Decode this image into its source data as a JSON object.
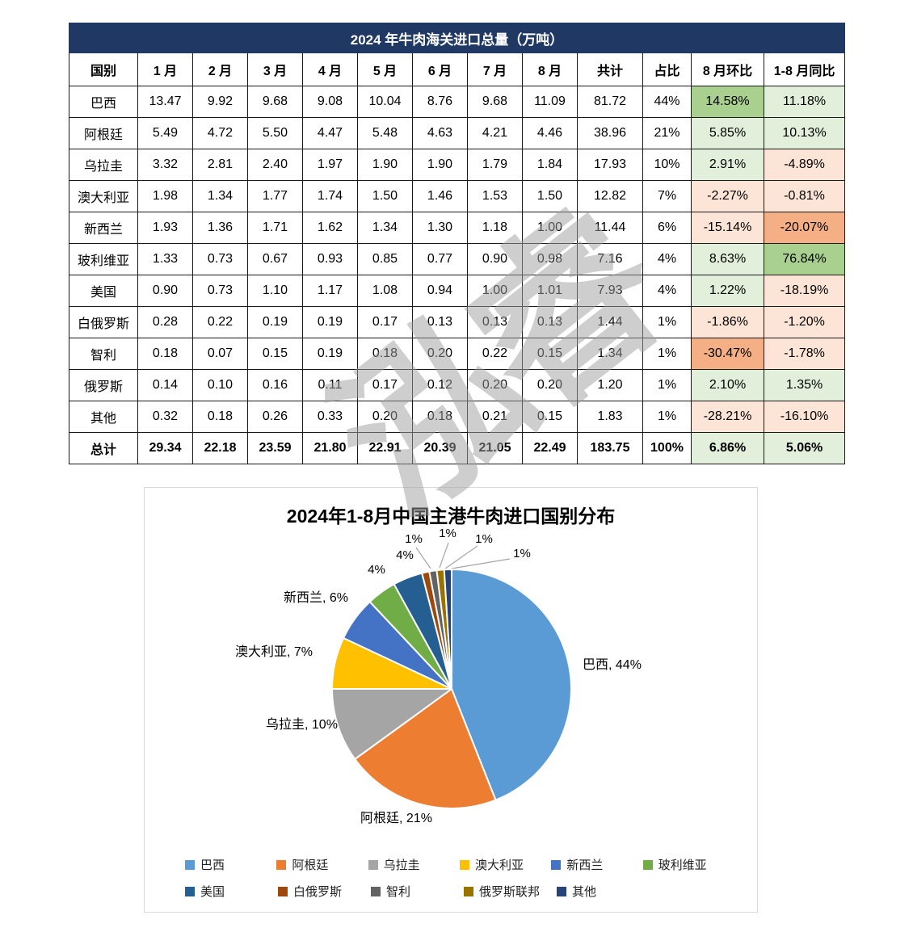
{
  "table": {
    "title": "2024 年牛肉海关进口总量（万吨）",
    "columns": [
      "国别",
      "1 月",
      "2 月",
      "3 月",
      "4 月",
      "5 月",
      "6 月",
      "7 月",
      "8 月",
      "共计",
      "占比",
      "8 月环比",
      "1-8 月同比"
    ],
    "rows": [
      {
        "country": "巴西",
        "months": [
          "13.47",
          "9.92",
          "9.68",
          "9.08",
          "10.04",
          "8.76",
          "9.68",
          "11.09"
        ],
        "total": "81.72",
        "share": "44%",
        "mom": {
          "text": "14.58%",
          "tone": "green_strong"
        },
        "yoy": {
          "text": "11.18%",
          "tone": "green_light"
        },
        "bold": false
      },
      {
        "country": "阿根廷",
        "months": [
          "5.49",
          "4.72",
          "5.50",
          "4.47",
          "5.48",
          "4.63",
          "4.21",
          "4.46"
        ],
        "total": "38.96",
        "share": "21%",
        "mom": {
          "text": "5.85%",
          "tone": "green_light"
        },
        "yoy": {
          "text": "10.13%",
          "tone": "green_light"
        },
        "bold": false
      },
      {
        "country": "乌拉圭",
        "months": [
          "3.32",
          "2.81",
          "2.40",
          "1.97",
          "1.90",
          "1.90",
          "1.79",
          "1.84"
        ],
        "total": "17.93",
        "share": "10%",
        "mom": {
          "text": "2.91%",
          "tone": "green_light"
        },
        "yoy": {
          "text": "-4.89%",
          "tone": "orange_light"
        },
        "bold": false
      },
      {
        "country": "澳大利亚",
        "months": [
          "1.98",
          "1.34",
          "1.77",
          "1.74",
          "1.50",
          "1.46",
          "1.53",
          "1.50"
        ],
        "total": "12.82",
        "share": "7%",
        "mom": {
          "text": "-2.27%",
          "tone": "orange_light"
        },
        "yoy": {
          "text": "-0.81%",
          "tone": "orange_light"
        },
        "bold": false
      },
      {
        "country": "新西兰",
        "months": [
          "1.93",
          "1.36",
          "1.71",
          "1.62",
          "1.34",
          "1.30",
          "1.18",
          "1.00"
        ],
        "total": "11.44",
        "share": "6%",
        "mom": {
          "text": "-15.14%",
          "tone": "orange_light"
        },
        "yoy": {
          "text": "-20.07%",
          "tone": "orange_strong"
        },
        "bold": false
      },
      {
        "country": "玻利维亚",
        "months": [
          "1.33",
          "0.73",
          "0.67",
          "0.93",
          "0.85",
          "0.77",
          "0.90",
          "0.98"
        ],
        "total": "7.16",
        "share": "4%",
        "mom": {
          "text": "8.63%",
          "tone": "green_light"
        },
        "yoy": {
          "text": "76.84%",
          "tone": "green_strong"
        },
        "bold": false
      },
      {
        "country": "美国",
        "months": [
          "0.90",
          "0.73",
          "1.10",
          "1.17",
          "1.08",
          "0.94",
          "1.00",
          "1.01"
        ],
        "total": "7.93",
        "share": "4%",
        "mom": {
          "text": "1.22%",
          "tone": "green_light"
        },
        "yoy": {
          "text": "-18.19%",
          "tone": "orange_light"
        },
        "bold": false
      },
      {
        "country": "白俄罗斯",
        "months": [
          "0.28",
          "0.22",
          "0.19",
          "0.19",
          "0.17",
          "0.13",
          "0.13",
          "0.13"
        ],
        "total": "1.44",
        "share": "1%",
        "mom": {
          "text": "-1.86%",
          "tone": "orange_light"
        },
        "yoy": {
          "text": "-1.20%",
          "tone": "orange_light"
        },
        "bold": false
      },
      {
        "country": "智利",
        "months": [
          "0.18",
          "0.07",
          "0.15",
          "0.19",
          "0.18",
          "0.20",
          "0.22",
          "0.15"
        ],
        "total": "1.34",
        "share": "1%",
        "mom": {
          "text": "-30.47%",
          "tone": "orange_strong"
        },
        "yoy": {
          "text": "-1.78%",
          "tone": "orange_light"
        },
        "bold": false
      },
      {
        "country": "俄罗斯",
        "months": [
          "0.14",
          "0.10",
          "0.16",
          "0.11",
          "0.17",
          "0.12",
          "0.20",
          "0.20"
        ],
        "total": "1.20",
        "share": "1%",
        "mom": {
          "text": "2.10%",
          "tone": "green_light"
        },
        "yoy": {
          "text": "1.35%",
          "tone": "green_light"
        },
        "bold": false
      },
      {
        "country": "其他",
        "months": [
          "0.32",
          "0.18",
          "0.26",
          "0.33",
          "0.20",
          "0.18",
          "0.21",
          "0.15"
        ],
        "total": "1.83",
        "share": "1%",
        "mom": {
          "text": "-28.21%",
          "tone": "orange_light"
        },
        "yoy": {
          "text": "-16.10%",
          "tone": "orange_light"
        },
        "bold": false
      },
      {
        "country": "总计",
        "months": [
          "29.34",
          "22.18",
          "23.59",
          "21.80",
          "22.91",
          "20.39",
          "21.05",
          "22.49"
        ],
        "total": "183.75",
        "share": "100%",
        "mom": {
          "text": "6.86%",
          "tone": "green_light"
        },
        "yoy": {
          "text": "5.06%",
          "tone": "green_light"
        },
        "bold": true
      }
    ]
  },
  "colors": {
    "header_navy": "#1F3864",
    "green_strong": "#A9D08E",
    "green_light": "#E2EFDA",
    "orange_light": "#FCE4D6",
    "orange_strong": "#F4B084",
    "leader_line": "#A6A6A6",
    "chart_border": "#D9D9D9"
  },
  "watermark": {
    "text": "泓睿"
  },
  "chart_data": {
    "type": "pie",
    "title": "2024年1-8月中国主港牛肉进口国别分布",
    "labels": [
      "巴西",
      "阿根廷",
      "乌拉圭",
      "澳大利亚",
      "新西兰",
      "玻利维亚",
      "美国",
      "白俄罗斯",
      "智利",
      "俄罗斯联邦",
      "其他"
    ],
    "values": [
      44,
      21,
      10,
      7,
      6,
      4,
      4,
      1,
      1,
      1,
      1
    ],
    "unit": "%",
    "start_angle_deg": 0,
    "direction": "clockwise",
    "colors": [
      "#5B9BD5",
      "#ED7D31",
      "#A5A5A5",
      "#FFC000",
      "#4472C4",
      "#70AD47",
      "#255E91",
      "#9E480E",
      "#636363",
      "#997300",
      "#264478"
    ],
    "slice_labels": [
      "巴西, 44%",
      "阿根廷, 21%",
      "乌拉圭, 10%",
      "澳大利亚, 7%",
      "新西兰, 6%",
      "4%",
      "4%",
      "1%",
      "1%",
      "1%",
      "1%"
    ],
    "legend_rows": [
      [
        "巴西",
        "阿根廷",
        "乌拉圭",
        "澳大利亚",
        "新西兰",
        "玻利维亚"
      ],
      [
        "美国",
        "白俄罗斯",
        "智利",
        "俄罗斯联邦",
        "其他"
      ]
    ],
    "legend_position": "bottom",
    "grid": false
  }
}
